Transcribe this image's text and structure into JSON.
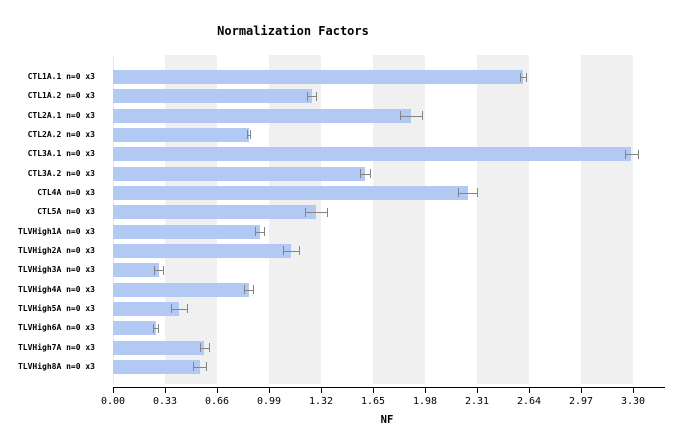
{
  "chart_data": {
    "type": "bar",
    "orientation": "horizontal",
    "title": "Normalization Factors",
    "xlabel": "NF",
    "ylabel": "",
    "xlim": [
      0.0,
      3.48
    ],
    "xticks": [
      0.0,
      0.33,
      0.66,
      0.99,
      1.32,
      1.65,
      1.98,
      2.31,
      2.64,
      2.97,
      3.3
    ],
    "xtick_labels": [
      "0.00",
      "0.33",
      "0.66",
      "0.99",
      "1.32",
      "1.65",
      "1.98",
      "2.31",
      "2.64",
      "2.97",
      "3.30"
    ],
    "categories": [
      "CTL1A.1 n=0 x3",
      "CTL1A.2 n=0 x3",
      "CTL2A.1 n=0 x3",
      "CTL2A.2 n=0 x3",
      "CTL3A.1 n=0 x3",
      "CTL3A.2 n=0 x3",
      "CTL4A n=0 x3",
      "CTL5A n=0 x3",
      "TLVHigh1A n=0 x3",
      "TLVHigh2A n=0 x3",
      "TLVHigh3A n=0 x3",
      "TLVHigh4A n=0 x3",
      "TLVHigh5A n=0 x3",
      "TLVHigh6A n=0 x3",
      "TLVHigh7A n=0 x3",
      "TLVHigh8A n=0 x3"
    ],
    "values": [
      2.6,
      1.26,
      1.89,
      0.86,
      3.29,
      1.6,
      2.25,
      1.29,
      0.93,
      1.13,
      0.29,
      0.86,
      0.42,
      0.27,
      0.58,
      0.55
    ],
    "errors": [
      0.02,
      0.03,
      0.07,
      0.01,
      0.04,
      0.03,
      0.06,
      0.07,
      0.03,
      0.05,
      0.03,
      0.03,
      0.05,
      0.015,
      0.03,
      0.04
    ],
    "bar_color": "#b2c9f4",
    "band_color": "#f0f0f0",
    "error_bar_color": "#848484",
    "axis_color": "#000000",
    "grid": "alternating-vertical-bands",
    "legend": "none"
  }
}
